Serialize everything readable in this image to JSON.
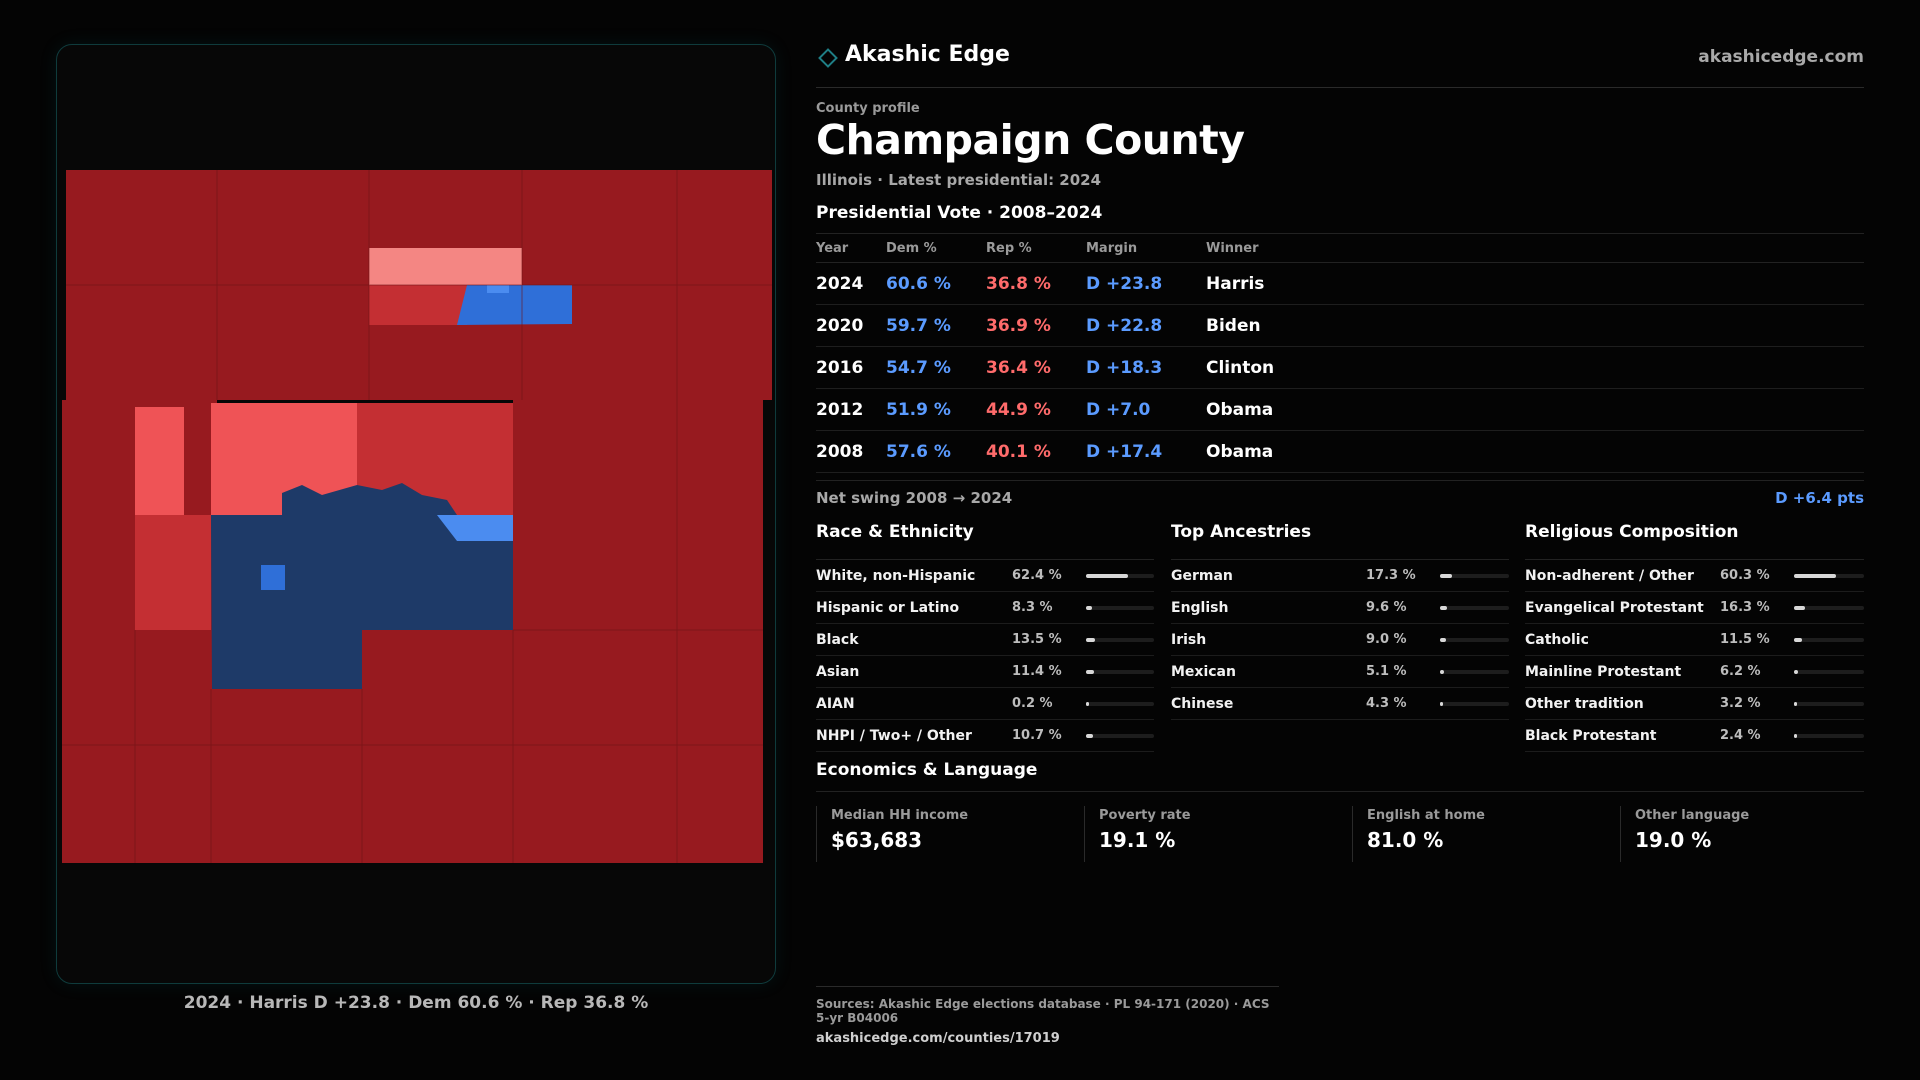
{
  "header": {
    "brand": "Akashic Edge",
    "site": "akashicedge.com"
  },
  "profile": {
    "label": "County profile",
    "title": "Champaign County",
    "subtitle": "Illinois · Latest presidential: 2024"
  },
  "vote": {
    "section_title": "Presidential Vote · 2008–2024",
    "headers": {
      "year": "Year",
      "dem": "Dem %",
      "rep": "Rep %",
      "margin": "Margin",
      "winner": "Winner"
    },
    "rows": [
      {
        "year": "2024",
        "dem": "60.6 %",
        "rep": "36.8 %",
        "margin": "D +23.8",
        "winner": "Harris"
      },
      {
        "year": "2020",
        "dem": "59.7 %",
        "rep": "36.9 %",
        "margin": "D +22.8",
        "winner": "Biden"
      },
      {
        "year": "2016",
        "dem": "54.7 %",
        "rep": "36.4 %",
        "margin": "D +18.3",
        "winner": "Clinton"
      },
      {
        "year": "2012",
        "dem": "51.9 %",
        "rep": "44.9 %",
        "margin": "D +7.0",
        "winner": "Obama"
      },
      {
        "year": "2008",
        "dem": "57.6 %",
        "rep": "40.1 %",
        "margin": "D +17.4",
        "winner": "Obama"
      }
    ],
    "swing_label": "Net swing 2008 → 2024",
    "swing_value": "D +6.4 pts"
  },
  "race": {
    "title": "Race & Ethnicity",
    "rows": [
      {
        "label": "White, non-Hispanic",
        "pct": "62.4 %",
        "value": 62.4
      },
      {
        "label": "Hispanic or Latino",
        "pct": "8.3 %",
        "value": 8.3
      },
      {
        "label": "Black",
        "pct": "13.5 %",
        "value": 13.5
      },
      {
        "label": "Asian",
        "pct": "11.4 %",
        "value": 11.4
      },
      {
        "label": "AIAN",
        "pct": "0.2 %",
        "value": 0.2
      },
      {
        "label": "NHPI / Two+ / Other",
        "pct": "10.7 %",
        "value": 10.7
      }
    ]
  },
  "ancestry": {
    "title": "Top Ancestries",
    "rows": [
      {
        "label": "German",
        "pct": "17.3 %",
        "value": 17.3
      },
      {
        "label": "English",
        "pct": "9.6 %",
        "value": 9.6
      },
      {
        "label": "Irish",
        "pct": "9.0 %",
        "value": 9.0
      },
      {
        "label": "Mexican",
        "pct": "5.1 %",
        "value": 5.1
      },
      {
        "label": "Chinese",
        "pct": "4.3 %",
        "value": 4.3
      }
    ]
  },
  "religion": {
    "title": "Religious Composition",
    "rows": [
      {
        "label": "Non-adherent / Other",
        "pct": "60.3 %",
        "value": 60.3
      },
      {
        "label": "Evangelical Protestant",
        "pct": "16.3 %",
        "value": 16.3
      },
      {
        "label": "Catholic",
        "pct": "11.5 %",
        "value": 11.5
      },
      {
        "label": "Mainline Protestant",
        "pct": "6.2 %",
        "value": 6.2
      },
      {
        "label": "Other tradition",
        "pct": "3.2 %",
        "value": 3.2
      },
      {
        "label": "Black Protestant",
        "pct": "2.4 %",
        "value": 2.4
      }
    ]
  },
  "economics": {
    "title": "Economics & Language",
    "items": [
      {
        "label": "Median HH income",
        "value": "$63,683"
      },
      {
        "label": "Poverty rate",
        "value": "19.1 %"
      },
      {
        "label": "English at home",
        "value": "81.0 %"
      },
      {
        "label": "Other language",
        "value": "19.0 %"
      }
    ]
  },
  "sources": {
    "line": "Sources: Akashic Edge elections database · PL 94-171 (2020) · ACS 5-yr B04006",
    "url": "akashicedge.com/counties/17019"
  },
  "map": {
    "caption": "2024 · Harris D +23.8 · Dem 60.6 % · Rep 36.8 %",
    "colors": {
      "strong_rep": "#971a1f",
      "lean_rep": "#c42f33",
      "light_rep": "#ef5356",
      "pale_rep": "#f48683",
      "strong_dem": "#1e3a68",
      "lean_dem": "#2f6fd8",
      "light_dem": "#4b8cf0"
    }
  }
}
